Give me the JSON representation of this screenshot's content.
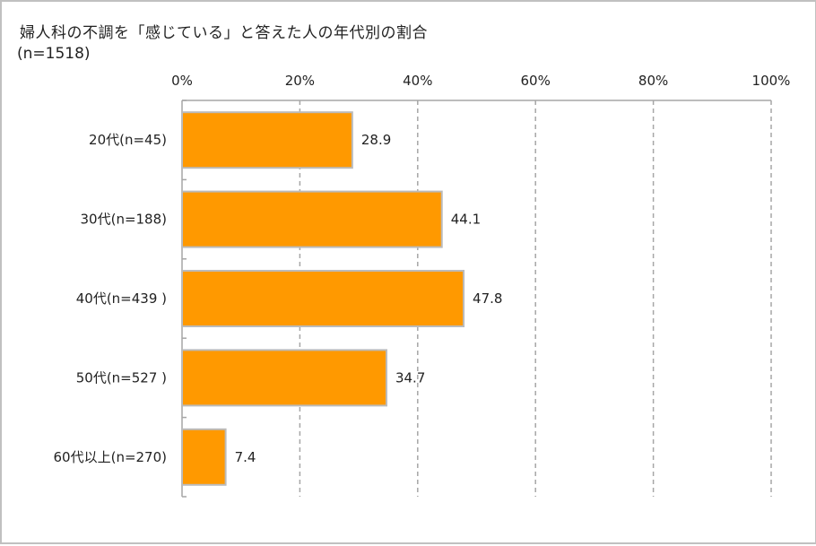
{
  "chart_data": {
    "type": "bar",
    "orientation": "horizontal",
    "title": "婦人科の不調を「感じている」と答えた人の年代別の割合",
    "subtitle": "(n=1518)",
    "categories": [
      "20代(n=45)",
      "30代(n=188)",
      "40代(n=439 )",
      "50代(n=527 )",
      "60代以上(n=270)"
    ],
    "values": [
      28.9,
      44.1,
      47.8,
      34.7,
      7.4
    ],
    "data_labels": [
      "28.9",
      "44.1",
      "47.8",
      "34.7",
      "7.4"
    ],
    "xlim": [
      0,
      100
    ],
    "x_ticks": [
      "0%",
      "20%",
      "40%",
      "60%",
      "80%",
      "100%"
    ],
    "x_tick_values": [
      0,
      20,
      40,
      60,
      80,
      100
    ],
    "x_axis_position": "top",
    "grid": "vertical dashed",
    "legend": "none",
    "bar_color": "#FF9900",
    "bar_border_color": "#BBBBBB"
  }
}
